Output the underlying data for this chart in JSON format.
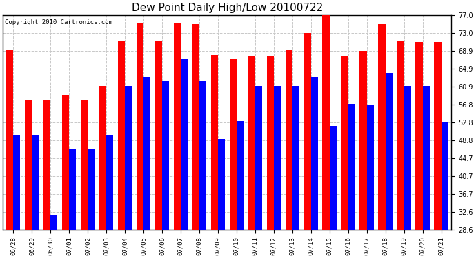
{
  "title": "Dew Point Daily High/Low 20100722",
  "copyright": "Copyright 2010 Cartronics.com",
  "dates": [
    "06/28",
    "06/29",
    "06/30",
    "07/01",
    "07/02",
    "07/03",
    "07/04",
    "07/05",
    "07/06",
    "07/07",
    "07/08",
    "07/09",
    "07/10",
    "07/11",
    "07/12",
    "07/13",
    "07/14",
    "07/15",
    "07/16",
    "07/17",
    "07/18",
    "07/19",
    "07/20",
    "07/21"
  ],
  "highs": [
    69.0,
    57.9,
    57.9,
    59.0,
    57.9,
    61.0,
    71.1,
    75.2,
    71.1,
    75.2,
    75.0,
    68.0,
    67.1,
    67.8,
    67.8,
    69.1,
    73.0,
    78.1,
    67.8,
    68.9,
    75.0,
    71.1,
    70.9,
    70.9
  ],
  "lows": [
    50.0,
    50.0,
    32.0,
    46.9,
    46.9,
    50.0,
    61.0,
    63.0,
    62.1,
    67.1,
    62.1,
    49.1,
    53.1,
    61.0,
    61.0,
    61.0,
    63.0,
    52.0,
    57.0,
    56.8,
    64.0,
    61.0,
    61.0,
    52.9
  ],
  "high_color": "#ff0000",
  "low_color": "#0000ff",
  "background_color": "#ffffff",
  "plot_bg_color": "#ffffff",
  "grid_color": "#c8c8c8",
  "ylim_min": 28.6,
  "ylim_max": 77.0,
  "yticks": [
    28.6,
    32.6,
    36.7,
    40.7,
    44.7,
    48.8,
    52.8,
    56.8,
    60.9,
    64.9,
    68.9,
    73.0,
    77.0
  ],
  "bar_width": 0.38,
  "title_fontsize": 11,
  "copyright_fontsize": 6.5,
  "tick_fontsize": 6.5,
  "ytick_fontsize": 7,
  "figwidth": 6.9,
  "figheight": 3.75,
  "dpi": 100
}
